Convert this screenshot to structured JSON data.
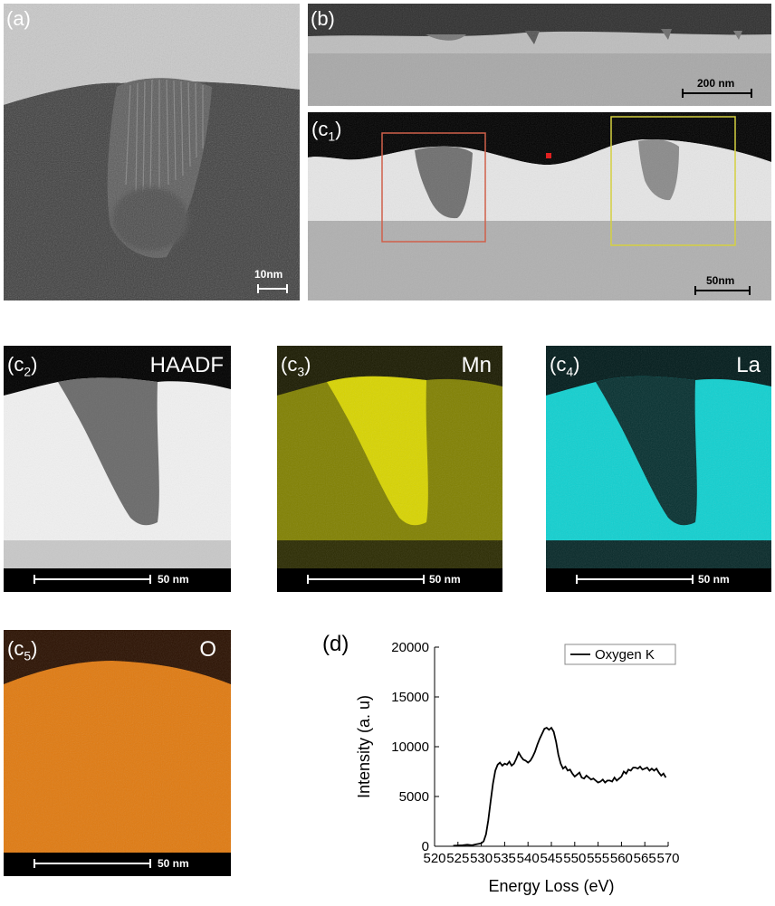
{
  "panels": {
    "a": {
      "label": "(a)",
      "scale_bar": "10nm"
    },
    "b": {
      "label": "(b)",
      "scale_bar": "200 nm"
    },
    "c1": {
      "label_main": "(c",
      "label_sub": "1",
      "label_end": ")",
      "scale_bar": "50nm",
      "box_colors": {
        "left": "#d0604a",
        "right": "#d4d040",
        "marker": "#e02020"
      }
    },
    "c2": {
      "label_main": "(c",
      "label_sub": "2",
      "label_end": ")",
      "element": "HAADF",
      "scale_bar": "50 nm"
    },
    "c3": {
      "label_main": "(c",
      "label_sub": "3",
      "label_end": ")",
      "element": "Mn",
      "scale_bar": "50 nm",
      "color": "#d8d400"
    },
    "c4": {
      "label_main": "(c",
      "label_sub": "4",
      "label_end": ")",
      "element": "La",
      "scale_bar": "50 nm",
      "color": "#10d0d0"
    },
    "c5": {
      "label_main": "(c",
      "label_sub": "5",
      "label_end": ")",
      "element": "O",
      "scale_bar": "50 nm",
      "color": "#e07a10"
    },
    "d": {
      "label": "(d)"
    }
  },
  "chart_data": {
    "type": "line",
    "xlabel": "Energy Loss (eV)",
    "ylabel": "Intensity (a. u)",
    "xlim": [
      520,
      570
    ],
    "ylim": [
      0,
      20000
    ],
    "xticks": [
      520,
      525,
      530,
      535,
      540,
      545,
      550,
      555,
      560,
      565,
      570
    ],
    "yticks": [
      0,
      5000,
      10000,
      15000,
      20000
    ],
    "legend_placement": "top-right",
    "grid": false,
    "series": [
      {
        "name": "Oxygen K",
        "color": "#000000",
        "x": [
          524,
          526,
          527,
          528,
          529,
          530,
          530.5,
          531,
          531.5,
          532,
          532.5,
          533,
          533.5,
          534,
          534.5,
          535,
          535.5,
          536,
          536.5,
          537,
          537.5,
          538,
          538.5,
          539,
          539.5,
          540,
          540.5,
          541,
          541.5,
          542,
          542.5,
          543,
          543.5,
          544,
          544.5,
          545,
          545.5,
          546,
          546.5,
          547,
          547.5,
          548,
          548.5,
          549,
          549.5,
          550,
          550.5,
          551,
          551.5,
          552,
          552.5,
          553,
          553.5,
          554,
          554.5,
          555,
          555.5,
          556,
          556.5,
          557,
          557.5,
          558,
          558.5,
          559,
          559.5,
          560,
          560.5,
          561,
          561.5,
          562,
          562.5,
          563,
          563.5,
          564,
          564.5,
          565,
          565.5,
          566,
          566.5,
          567,
          567.5,
          568,
          568.5,
          569,
          569.5
        ],
        "y": [
          50,
          100,
          150,
          100,
          200,
          300,
          500,
          1200,
          2600,
          4500,
          6300,
          7600,
          8200,
          8400,
          8100,
          8300,
          8200,
          8500,
          8100,
          8300,
          8800,
          9400,
          9000,
          8700,
          8600,
          8400,
          8600,
          9000,
          9500,
          10200,
          10800,
          11300,
          11800,
          11900,
          11700,
          11900,
          11500,
          10500,
          9200,
          8300,
          7800,
          8000,
          7600,
          7700,
          7300,
          7000,
          7200,
          7400,
          6900,
          6800,
          7100,
          6900,
          6700,
          6800,
          6600,
          6400,
          6500,
          6700,
          6400,
          6600,
          6600,
          6500,
          6900,
          6600,
          6800,
          7000,
          7500,
          7300,
          7700,
          7600,
          7900,
          7900,
          7800,
          8000,
          7700,
          7800,
          7900,
          7600,
          7800,
          7600,
          7800,
          7400,
          7100,
          7300,
          6900
        ]
      }
    ]
  }
}
